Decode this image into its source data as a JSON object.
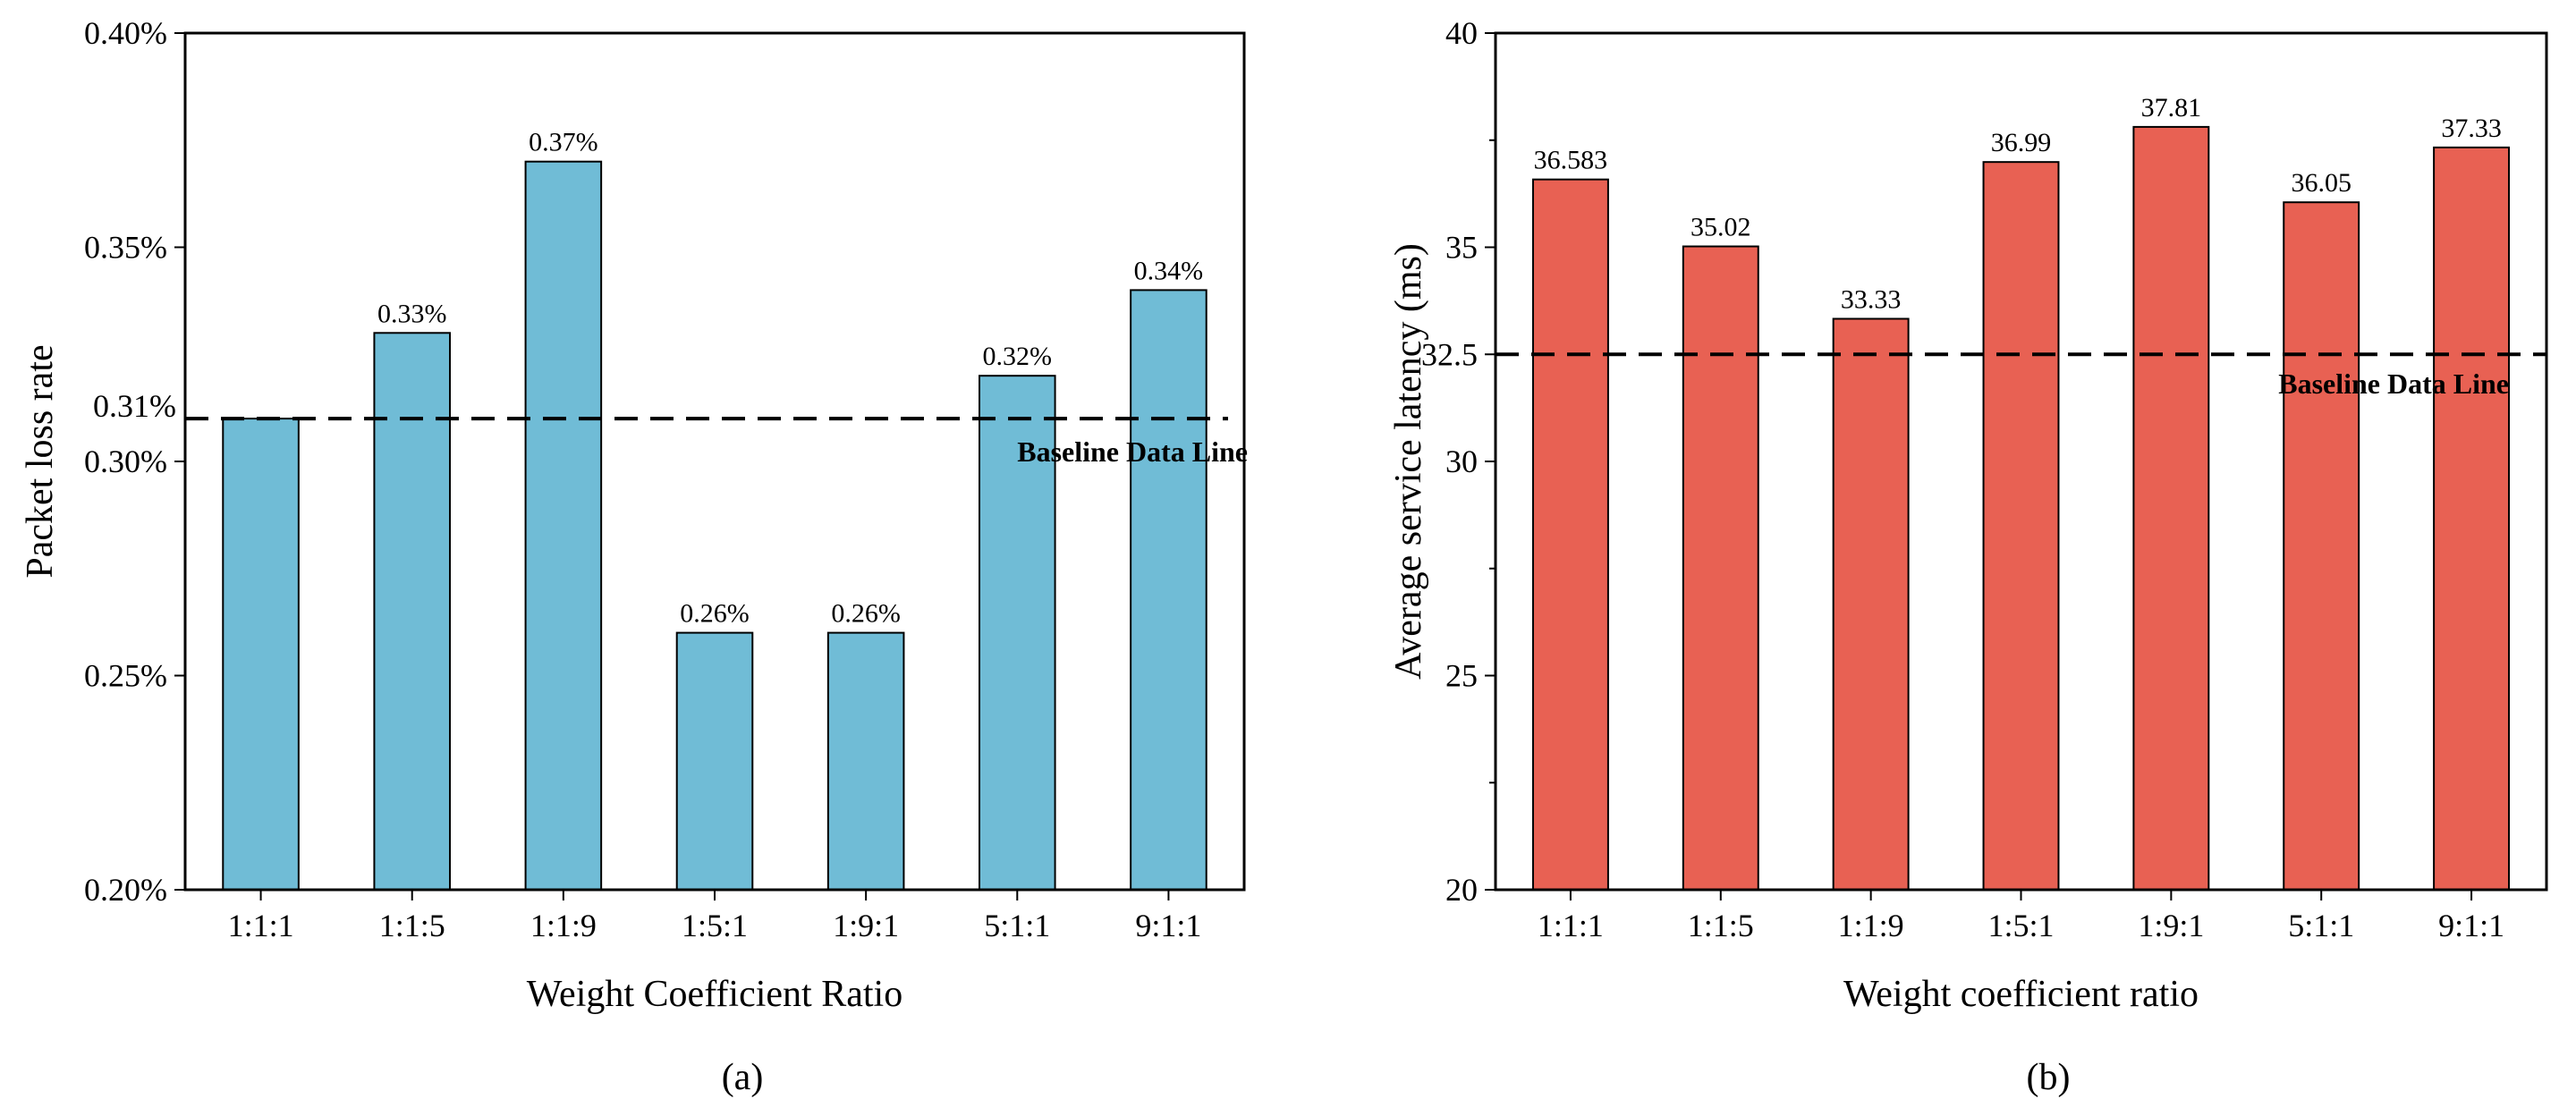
{
  "chart_data": [
    {
      "type": "bar",
      "panel_caption": "(a)",
      "categories": [
        "1:1:1",
        "1:1:5",
        "1:1:9",
        "1:5:1",
        "1:9:1",
        "5:1:1",
        "9:1:1"
      ],
      "values": [
        0.31,
        0.33,
        0.37,
        0.26,
        0.26,
        0.32,
        0.34
      ],
      "value_labels": [
        "",
        "0.33%",
        "0.37%",
        "0.26%",
        "0.26%",
        "0.32%",
        "0.34%"
      ],
      "xlabel": "Weight Coefficient Ratio",
      "ylabel": "Packet loss rate",
      "ylim": [
        0.2,
        0.4
      ],
      "yticks": [
        0.2,
        0.25,
        0.3,
        0.35,
        0.4
      ],
      "ytick_labels": [
        "0.20%",
        "0.25%",
        "0.30%",
        "0.35%",
        "0.40%"
      ],
      "baseline": {
        "value": 0.31,
        "value_label": "0.31%",
        "label": "Baseline Data Line"
      },
      "bar_color": "#70BCD6"
    },
    {
      "type": "bar",
      "panel_caption": "(b)",
      "categories": [
        "1:1:1",
        "1:1:5",
        "1:1:9",
        "1:5:1",
        "1:9:1",
        "5:1:1",
        "9:1:1"
      ],
      "values": [
        36.583,
        35.02,
        33.33,
        36.99,
        37.81,
        36.05,
        37.33
      ],
      "value_labels": [
        "36.583",
        "35.02",
        "33.33",
        "36.99",
        "37.81",
        "36.05",
        "37.33"
      ],
      "xlabel": "Weight coefficient ratio",
      "ylabel": "Average service latency (ms)",
      "ylim": [
        20,
        40
      ],
      "yticks": [
        20,
        25,
        30,
        32.5,
        35,
        40
      ],
      "ytick_labels": [
        "20",
        "25",
        "30",
        "32.5",
        "35",
        "40"
      ],
      "minor_yticks": [
        22.5,
        27.5,
        37.5
      ],
      "baseline": {
        "value": 32.5,
        "label": "Baseline Data Line"
      },
      "bar_color": "#E86153"
    }
  ]
}
